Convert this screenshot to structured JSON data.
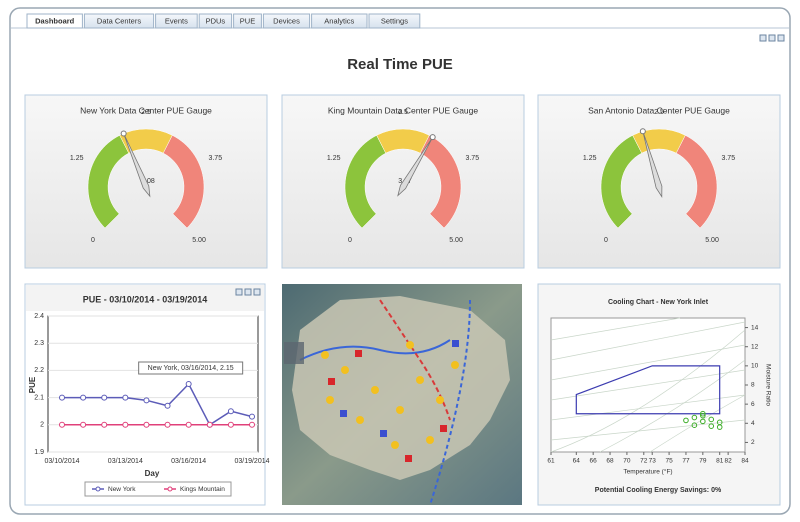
{
  "tabs": [
    "Dashboard",
    "Data Centers",
    "Events",
    "PDUs",
    "PUE",
    "Devices",
    "Analytics",
    "Settings"
  ],
  "title": "Real Time PUE",
  "gauges": [
    {
      "title": "New York Data Center PUE Gauge",
      "value": 2.08,
      "value_label": "2.08",
      "ticks": [
        0,
        1.25,
        2.5,
        3.75,
        {
          "value": 5,
          "label": "5.00"
        }
      ],
      "bands": [
        {
          "from": 0,
          "to": 2,
          "color": "#8cc43c"
        },
        {
          "from": 2,
          "to": 3,
          "color": "#f2cc4a"
        },
        {
          "from": 3,
          "to": 5,
          "color": "#f0857a"
        }
      ]
    },
    {
      "title": "King Mountain Data Center PUE Gauge",
      "value": 3.07,
      "value_label": "3.07",
      "ticks": [
        0,
        1.25,
        2.5,
        3.75,
        {
          "value": 5,
          "label": "5.00"
        }
      ],
      "bands": [
        {
          "from": 0,
          "to": 2,
          "color": "#8cc43c"
        },
        {
          "from": 2,
          "to": 3,
          "color": "#f2cc4a"
        },
        {
          "from": 3,
          "to": 5,
          "color": "#f0857a"
        }
      ]
    },
    {
      "title": "San Antonio Data Center PUE Gauge",
      "value": 2.2,
      "ticks": [
        0,
        1.25,
        2.5,
        3.75,
        {
          "value": 5,
          "label": "5.00"
        }
      ],
      "bands": [
        {
          "from": 0,
          "to": 2,
          "color": "#8cc43c"
        },
        {
          "from": 2,
          "to": 3,
          "color": "#f2cc4a"
        },
        {
          "from": 3,
          "to": 5,
          "color": "#f0857a"
        }
      ]
    }
  ],
  "line_chart": {
    "type": "line",
    "title": "PUE - 03/10/2014 - 03/19/2014",
    "x_label": "Day",
    "y_label": "PUE",
    "categories": [
      "03/10/2014",
      null,
      null,
      "03/13/2014",
      null,
      null,
      "03/16/2014",
      null,
      null,
      "03/19/2014"
    ],
    "ylim": [
      1.9,
      2.4
    ],
    "yticks": [
      1.9,
      2,
      2.1,
      2.2,
      2.3,
      2.4
    ],
    "grid": true,
    "series": [
      {
        "name": "New York",
        "color": "#5c5cb8",
        "values": [
          2.1,
          2.1,
          2.1,
          2.1,
          2.09,
          2.07,
          2.15,
          2.0,
          2.05,
          2.03
        ]
      },
      {
        "name": "Kings Mountain",
        "color": "#e0407a",
        "values": [
          2.0,
          2.0,
          2.0,
          2.0,
          2.0,
          2.0,
          2.0,
          2.0,
          2.0,
          2.0
        ]
      }
    ],
    "annotation": "New York, 03/16/2014, 2.15"
  },
  "cooling_chart": {
    "type": "scatter",
    "title": "Cooling Chart - New York Inlet",
    "x_label": "Temperature (°F)",
    "y_label": "Moisture Ratio",
    "xlim": [
      61,
      84
    ],
    "xticks": [
      61,
      64,
      66,
      68,
      70,
      72,
      73,
      75,
      77,
      79,
      81,
      82,
      84
    ],
    "ylim": [
      1,
      15
    ],
    "yticks": [
      2,
      4,
      6,
      8,
      10,
      12,
      14
    ],
    "envelope": {
      "color": "#3c3cb0",
      "x": [
        64,
        64,
        73,
        81,
        81
      ],
      "y": [
        5,
        7,
        10,
        10,
        5
      ]
    },
    "points": {
      "color": "#3fae2a",
      "x": [
        77,
        78,
        78,
        79,
        79,
        80,
        80,
        81,
        81,
        79
      ],
      "y": [
        4.3,
        4.6,
        3.8,
        4.2,
        4.8,
        3.7,
        4.4,
        4.1,
        3.6,
        5
      ]
    },
    "footer": "Potential Cooling Energy Savings: 0%"
  }
}
